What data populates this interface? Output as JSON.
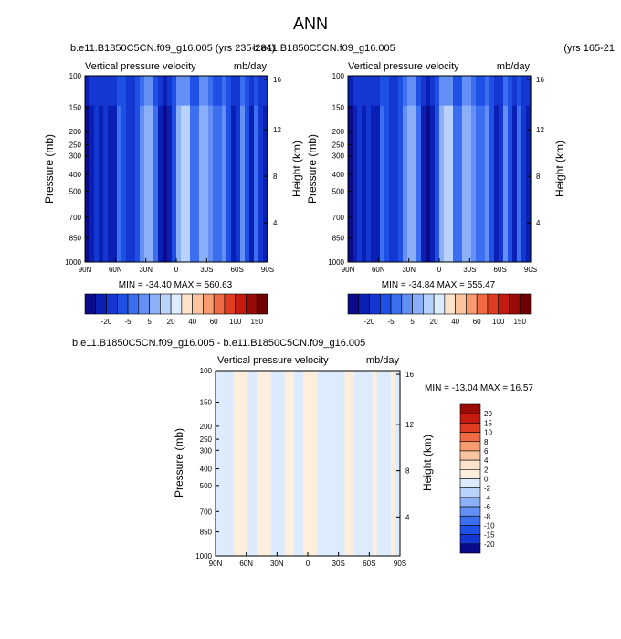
{
  "page": {
    "title": "ANN",
    "label_strip": "(yrs 165-21"
  },
  "chart_data": [
    {
      "type": "heatmap",
      "title": "b.e11.B1850C5CN.f09_g16.005 (yrs 235-284)",
      "subtitle": "Vertical pressure velocity",
      "units": "mb/day",
      "xlabel": "",
      "ylabel": "Pressure (mb)",
      "ylabel_right": "Height (km)",
      "x_ticks": [
        "90N",
        "60N",
        "30N",
        "0",
        "30S",
        "60S",
        "90S"
      ],
      "y_ticks": [
        "100",
        "150",
        "200",
        "250",
        "300",
        "400",
        "500",
        "700",
        "850",
        "1000"
      ],
      "y_ticks_right": [
        "16",
        "12",
        "8",
        "4"
      ],
      "ylim": [
        1000,
        100
      ],
      "stats": "MIN = -34.40   MAX = 560.63",
      "colorbar_labels": [
        "-20",
        "-5",
        "5",
        "20",
        "40",
        "60",
        "100",
        "150"
      ],
      "colorbar_colors": [
        "#0a0a8a",
        "#0a1fb4",
        "#1437d2",
        "#1e50e6",
        "#3c6ef0",
        "#6490f5",
        "#8cb0f8",
        "#b9d2fb",
        "#dcebfd",
        "#fde2cc",
        "#fbc4a0",
        "#f89b70",
        "#f06a44",
        "#e03c22",
        "#c41a10",
        "#9a0a06",
        "#6e0000"
      ],
      "profile_levels": [
        0,
        1,
        2,
        1,
        2,
        1,
        1,
        4,
        3,
        2,
        2,
        3,
        5,
        6,
        6,
        4,
        1,
        0,
        1,
        3,
        6,
        7,
        7,
        4,
        4,
        6,
        6,
        5,
        4,
        4,
        5,
        3,
        1,
        2,
        5,
        3,
        1,
        4,
        2,
        1
      ]
    },
    {
      "type": "heatmap",
      "title": "b.e11.B1850C5CN.f09_g16.005",
      "subtitle": "Vertical pressure velocity",
      "units": "mb/day",
      "xlabel": "",
      "ylabel": "Pressure (mb)",
      "ylabel_right": "Height (km)",
      "x_ticks": [
        "90N",
        "60N",
        "30N",
        "0",
        "30S",
        "60S",
        "90S"
      ],
      "y_ticks": [
        "100",
        "150",
        "200",
        "250",
        "300",
        "400",
        "500",
        "700",
        "850",
        "1000"
      ],
      "y_ticks_right": [
        "16",
        "12",
        "8",
        "4"
      ],
      "ylim": [
        1000,
        100
      ],
      "stats": "MIN = -34.84   MAX = 555.47",
      "colorbar_labels": [
        "-20",
        "-5",
        "5",
        "20",
        "40",
        "60",
        "100",
        "150"
      ],
      "colorbar_colors": [
        "#0a0a8a",
        "#0a1fb4",
        "#1437d2",
        "#1e50e6",
        "#3c6ef0",
        "#6490f5",
        "#8cb0f8",
        "#b9d2fb",
        "#dcebfd",
        "#fde2cc",
        "#fbc4a0",
        "#f89b70",
        "#f06a44",
        "#e03c22",
        "#c41a10",
        "#9a0a06",
        "#6e0000"
      ],
      "profile_levels": [
        0,
        1,
        2,
        1,
        2,
        1,
        1,
        4,
        3,
        2,
        2,
        3,
        5,
        6,
        6,
        4,
        1,
        0,
        1,
        3,
        6,
        7,
        7,
        4,
        4,
        6,
        6,
        5,
        4,
        4,
        5,
        3,
        1,
        2,
        5,
        3,
        1,
        4,
        2,
        1
      ]
    },
    {
      "type": "heatmap",
      "title": "b.e11.B1850C5CN.f09_g16.005 - b.e11.B1850C5CN.f09_g16.005",
      "subtitle": "Vertical pressure velocity",
      "units": "mb/day",
      "xlabel": "",
      "ylabel": "Pressure (mb)",
      "ylabel_right": "Height (km)",
      "x_ticks": [
        "90N",
        "60N",
        "30N",
        "0",
        "30S",
        "60S",
        "90S"
      ],
      "y_ticks": [
        "100",
        "150",
        "200",
        "250",
        "300",
        "400",
        "500",
        "700",
        "850",
        "1000"
      ],
      "y_ticks_right": [
        "16",
        "12",
        "8",
        "4"
      ],
      "ylim": [
        1000,
        100
      ],
      "stats": "MIN = -13.04   MAX =  16.57",
      "colorbar_labels": [
        "20",
        "15",
        "10",
        "8",
        "6",
        "4",
        "2",
        "0",
        "-2",
        "-4",
        "-6",
        "-8",
        "-10",
        "-15",
        "-20"
      ],
      "colorbar_colors": [
        "#9a0a06",
        "#c41a10",
        "#e03c22",
        "#f06a44",
        "#f89b70",
        "#fbc4a0",
        "#fde2cc",
        "#fdeedd",
        "#dcebfd",
        "#b9d2fb",
        "#8cb0f8",
        "#6490f5",
        "#3c6ef0",
        "#1e50e6",
        "#1437d2",
        "#0a0a8a"
      ],
      "profile_levels": [
        8,
        8,
        8,
        8,
        7,
        7,
        7,
        8,
        8,
        7,
        7,
        7,
        8,
        8,
        8,
        7,
        7,
        8,
        8,
        7,
        7,
        7,
        8,
        8,
        8,
        8,
        8,
        8,
        7,
        7,
        8,
        8,
        8,
        8,
        7,
        8,
        8,
        8,
        7,
        8
      ]
    }
  ]
}
